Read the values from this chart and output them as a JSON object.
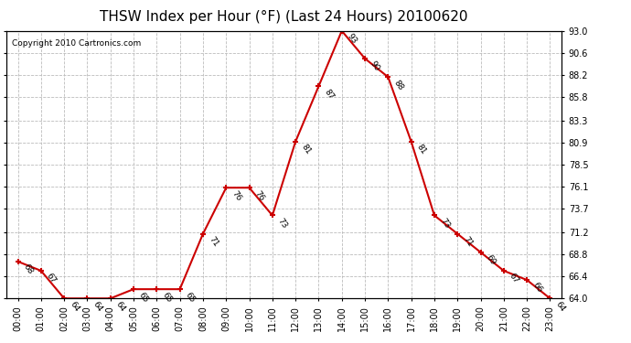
{
  "title": "THSW Index per Hour (°F) (Last 24 Hours) 20100620",
  "copyright": "Copyright 2010 Cartronics.com",
  "hours": [
    "00:00",
    "01:00",
    "02:00",
    "03:00",
    "04:00",
    "05:00",
    "06:00",
    "07:00",
    "08:00",
    "09:00",
    "10:00",
    "11:00",
    "12:00",
    "13:00",
    "14:00",
    "15:00",
    "16:00",
    "17:00",
    "18:00",
    "19:00",
    "20:00",
    "21:00",
    "22:00",
    "23:00"
  ],
  "values": [
    68,
    67,
    64,
    64,
    64,
    65,
    65,
    65,
    71,
    76,
    76,
    73,
    81,
    87,
    93,
    90,
    88,
    81,
    73,
    71,
    69,
    67,
    66,
    64
  ],
  "line_color": "#cc0000",
  "marker_color": "#cc0000",
  "bg_color": "#ffffff",
  "grid_color": "#bbbbbb",
  "ylim_min": 64.0,
  "ylim_max": 93.0,
  "yticks": [
    64.0,
    66.4,
    68.8,
    71.2,
    73.7,
    76.1,
    78.5,
    80.9,
    83.3,
    85.8,
    88.2,
    90.6,
    93.0
  ],
  "title_fontsize": 11,
  "label_fontsize": 7,
  "annot_fontsize": 6.5,
  "copyright_fontsize": 6.5
}
